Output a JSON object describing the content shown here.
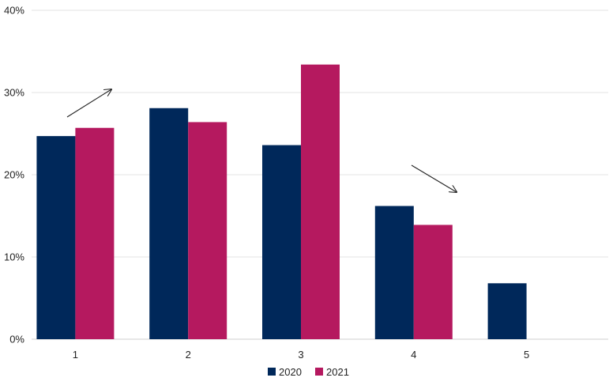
{
  "chart_data": {
    "type": "bar",
    "categories": [
      "1",
      "2",
      "3",
      "4",
      "5"
    ],
    "series": [
      {
        "name": "2020",
        "values": [
          24.7,
          28.1,
          23.6,
          16.2,
          6.8
        ],
        "color": "#00285a"
      },
      {
        "name": "2021",
        "values": [
          25.7,
          26.4,
          33.4,
          13.9,
          null
        ],
        "color": "#b5195f"
      }
    ],
    "ylim": [
      0,
      40
    ],
    "yticks": [
      "0%",
      "10%",
      "20%",
      "30%",
      "40%"
    ],
    "grid": true,
    "legend_position": "bottom-center",
    "annotations": [
      {
        "type": "arrow",
        "direction": "up-right",
        "near_category": "1"
      },
      {
        "type": "arrow",
        "direction": "down-right",
        "near_category": "4"
      }
    ]
  }
}
